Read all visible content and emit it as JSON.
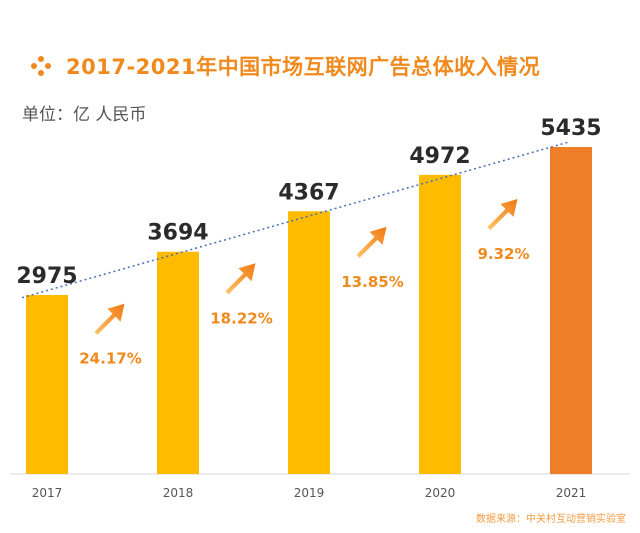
{
  "title": "2017-2021年中国市场互联网广告总体收入情况",
  "title_icon": "diamond-dots-icon",
  "unit_label": "单位：亿 人民币",
  "source_note": "数据来源：中关村互动营销实验室",
  "colors": {
    "bar": "#ffbb00",
    "bar_highlight": "#f07d28",
    "title": "#f08a1e",
    "growth_label": "#f08a1e",
    "trendline": "#4a6fb5"
  },
  "chart_data": {
    "type": "bar",
    "categories": [
      "2017",
      "2018",
      "2019",
      "2020",
      "2021"
    ],
    "values": [
      2975,
      3694,
      4367,
      4972,
      5435
    ],
    "highlight_index": 4,
    "growth_rates": [
      "24.17%",
      "18.22%",
      "13.85%",
      "9.32%"
    ],
    "trendline": "linear-dotted",
    "ylim": [
      0,
      5600
    ],
    "grid": false,
    "legend": "none"
  }
}
